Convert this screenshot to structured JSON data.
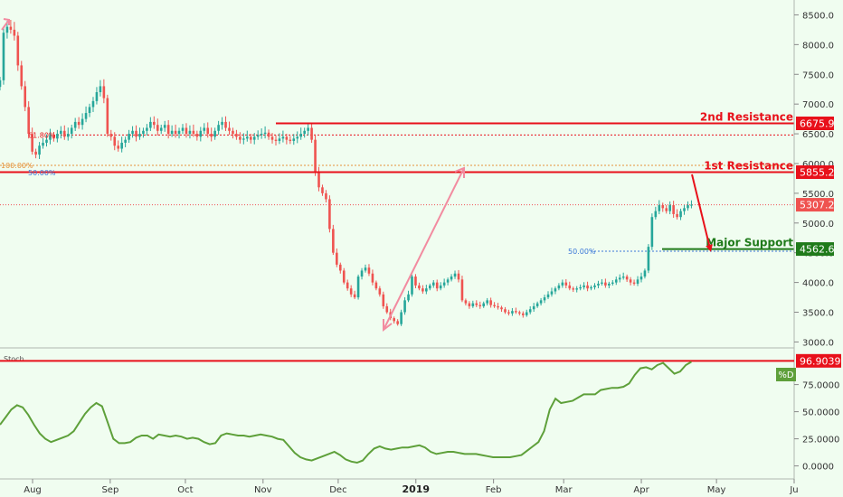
{
  "colors": {
    "background": "#f0fdf0",
    "up_candle": "#26a69a",
    "down_candle": "#ef5350",
    "resistance": "#e8101a",
    "support": "#1f7a1a",
    "stoch_line": "#5ea03a",
    "arrow_pink": "#f28ba0",
    "fib_blue": "#3c78d8",
    "fib_orange": "#e69138",
    "price_marker": "#ef5350"
  },
  "chart_data": [
    {
      "type": "candlestick",
      "title": "",
      "ylim": [
        2900,
        8750
      ],
      "y_ticks": [
        "8500.0",
        "8000.0",
        "7500.0",
        "7000.0",
        "6500.0",
        "6000.0",
        "5500.0",
        "5000.0",
        "4500.0",
        "4000.0",
        "3500.0",
        "3000.0"
      ],
      "y_tick_values": [
        8500,
        8000,
        7500,
        7000,
        6500,
        6000,
        5500,
        5000,
        4500,
        4000,
        3500,
        3000
      ],
      "x_ticks": [
        "Aug",
        "Sep",
        "Oct",
        "Nov",
        "Dec",
        "2019",
        "Feb",
        "Mar",
        "Apr",
        "May",
        "Ju"
      ],
      "x_tick_days": [
        0,
        31,
        61,
        92,
        122,
        153,
        184,
        212,
        243,
        273,
        304
      ],
      "x_range_days": [
        -13,
        304
      ],
      "series": [
        {
          "close": [
            7400,
            8200,
            8300,
            8250,
            8150,
            7650,
            7300,
            6950,
            6500,
            6200,
            6150,
            6300,
            6350,
            6400,
            6480,
            6420,
            6500,
            6550,
            6450,
            6500,
            6600,
            6700,
            6650,
            6750,
            6850,
            6950,
            7050,
            7200,
            7300,
            7100,
            6500,
            6450,
            6300,
            6250,
            6350,
            6400,
            6500,
            6550,
            6450,
            6500,
            6550,
            6600,
            6700,
            6650,
            6550,
            6600,
            6650,
            6500,
            6550,
            6500,
            6550,
            6600,
            6500,
            6550,
            6500,
            6450,
            6550,
            6600,
            6500,
            6450,
            6550,
            6650,
            6700,
            6600,
            6550,
            6500,
            6450,
            6400,
            6420,
            6450,
            6400,
            6450,
            6480,
            6500,
            6520,
            6450,
            6400,
            6380,
            6420,
            6450,
            6400,
            6380,
            6420,
            6450,
            6500,
            6550,
            6600,
            6400,
            5850,
            5600,
            5500,
            5400,
            4900,
            4500,
            4300,
            4200,
            4000,
            3900,
            3800,
            3750,
            4100,
            4200,
            4250,
            4150,
            4000,
            3900,
            3800,
            3600,
            3500,
            3400,
            3350,
            3300,
            3500,
            3700,
            3800,
            4100,
            3950,
            3900,
            3850,
            3900,
            3950,
            4000,
            3900,
            3950,
            4000,
            4050,
            4100,
            4150,
            4050,
            3700,
            3650,
            3600,
            3650,
            3620,
            3600,
            3650,
            3700,
            3620,
            3600,
            3580,
            3550,
            3500,
            3480,
            3520,
            3500,
            3480,
            3450,
            3500,
            3550,
            3600,
            3650,
            3700,
            3750,
            3800,
            3850,
            3900,
            3950,
            4000,
            3950,
            3900,
            3880,
            3900,
            3920,
            3950,
            3900,
            3920,
            3950,
            3980,
            4000,
            3950,
            3980,
            4000,
            4050,
            4080,
            4100,
            4050,
            4000,
            3980,
            4050,
            4100,
            4200,
            4600,
            5100,
            5200,
            5300,
            5250,
            5200,
            5300,
            5150,
            5100,
            5200,
            5250,
            5300,
            5307
          ]
        }
      ],
      "levels": [
        {
          "name": "2nd Resistance",
          "value": "6675.9"
        },
        {
          "name": "1st Resistance",
          "value": "5855.2"
        },
        {
          "name": "Major Support",
          "value": "4562.6"
        }
      ],
      "current_price": "5307.2",
      "fib_labels": {
        "fib_618": "61.80%",
        "fib_100": "100.00%",
        "fib_50_left": "50.00%",
        "fib_50_right": "50.00%"
      }
    },
    {
      "type": "line",
      "indicator_label": "Stoch",
      "ylim": [
        -12,
        108
      ],
      "y_ticks": [
        "75.0000",
        "50.0000",
        "25.0000",
        "0.0000"
      ],
      "y_tick_values": [
        75,
        50,
        25,
        0
      ],
      "overbought_value": "96.9039",
      "legend_label": "%D",
      "series": [
        {
          "name": "%D",
          "values": [
            38,
            45,
            52,
            56,
            54,
            47,
            38,
            30,
            25,
            22,
            24,
            26,
            28,
            32,
            40,
            48,
            54,
            58,
            55,
            40,
            25,
            21,
            21,
            22,
            26,
            28,
            28,
            25,
            29,
            28,
            27,
            28,
            27,
            25,
            26,
            25,
            22,
            20,
            21,
            28,
            30,
            29,
            28,
            28,
            27,
            28,
            29,
            28,
            27,
            25,
            24,
            18,
            12,
            8,
            6,
            5,
            7,
            9,
            11,
            13,
            10,
            6,
            4,
            3,
            5,
            11,
            16,
            18,
            16,
            15,
            16,
            17,
            17,
            18,
            19,
            17,
            13,
            11,
            12,
            13,
            13,
            12,
            11,
            11,
            11,
            10,
            9,
            8,
            8,
            8,
            8,
            9,
            10,
            14,
            18,
            22,
            32,
            52,
            62,
            58,
            59,
            60,
            63,
            66,
            66,
            66,
            70,
            71,
            72,
            72,
            73,
            76,
            84,
            90,
            91,
            89,
            93,
            95,
            90,
            85,
            87,
            93,
            96
          ]
        }
      ]
    }
  ]
}
